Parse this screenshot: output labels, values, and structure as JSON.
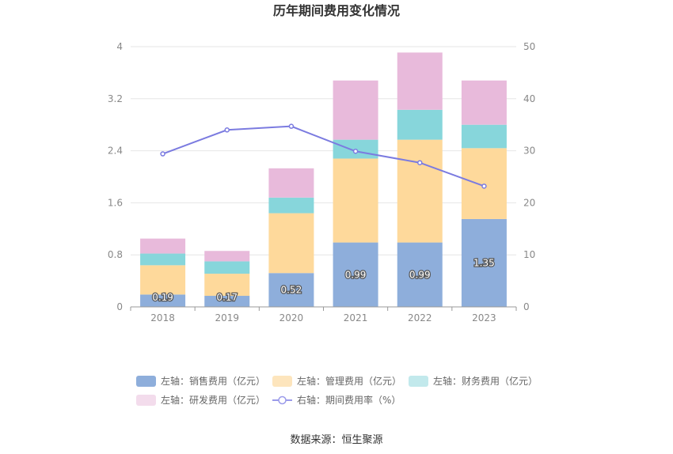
{
  "chart_data": {
    "type": "bar",
    "title": "历年期间费用变化情况",
    "categories": [
      "2018",
      "2019",
      "2020",
      "2021",
      "2022",
      "2023"
    ],
    "left_axis": {
      "min": 0,
      "max": 4,
      "ticks": [
        "0",
        "0.8",
        "1.6",
        "2.4",
        "3.2",
        "4"
      ]
    },
    "right_axis": {
      "min": 0,
      "max": 50,
      "ticks": [
        "0",
        "10",
        "20",
        "30",
        "40",
        "50"
      ]
    },
    "stacked": true,
    "series": [
      {
        "name": "左轴：销售费用（亿元）",
        "type": "bar",
        "axis": "left",
        "color": "#8eaedb",
        "values": [
          0.19,
          0.17,
          0.52,
          0.99,
          0.99,
          1.35
        ],
        "labels": [
          "0.19",
          "0.17",
          "0.52",
          "0.99",
          "0.99",
          "1.35"
        ]
      },
      {
        "name": "左轴：管理费用（亿元）",
        "type": "bar",
        "axis": "left",
        "color": "#fed99b",
        "values": [
          0.45,
          0.34,
          0.92,
          1.29,
          1.58,
          1.09
        ]
      },
      {
        "name": "左轴：财务费用（亿元）",
        "type": "bar",
        "axis": "left",
        "color": "#87d6db",
        "values": [
          0.18,
          0.19,
          0.24,
          0.29,
          0.46,
          0.36
        ]
      },
      {
        "name": "左轴：研发费用（亿元）",
        "type": "bar",
        "axis": "left",
        "color": "#e8badb",
        "values": [
          0.23,
          0.16,
          0.45,
          0.91,
          0.88,
          0.68
        ]
      },
      {
        "name": "右轴：期间费用率（%）",
        "type": "line",
        "axis": "right",
        "color": "#7b7be0",
        "values": [
          29.4,
          34.0,
          34.7,
          29.9,
          27.7,
          23.2
        ]
      }
    ],
    "legend_position": "bottom",
    "legend_colors": [
      "#8eaedb",
      "#fde5bd",
      "#c2e9ec",
      "#f3dcec",
      "#9b9bea"
    ],
    "source": "数据来源：恒生聚源"
  }
}
